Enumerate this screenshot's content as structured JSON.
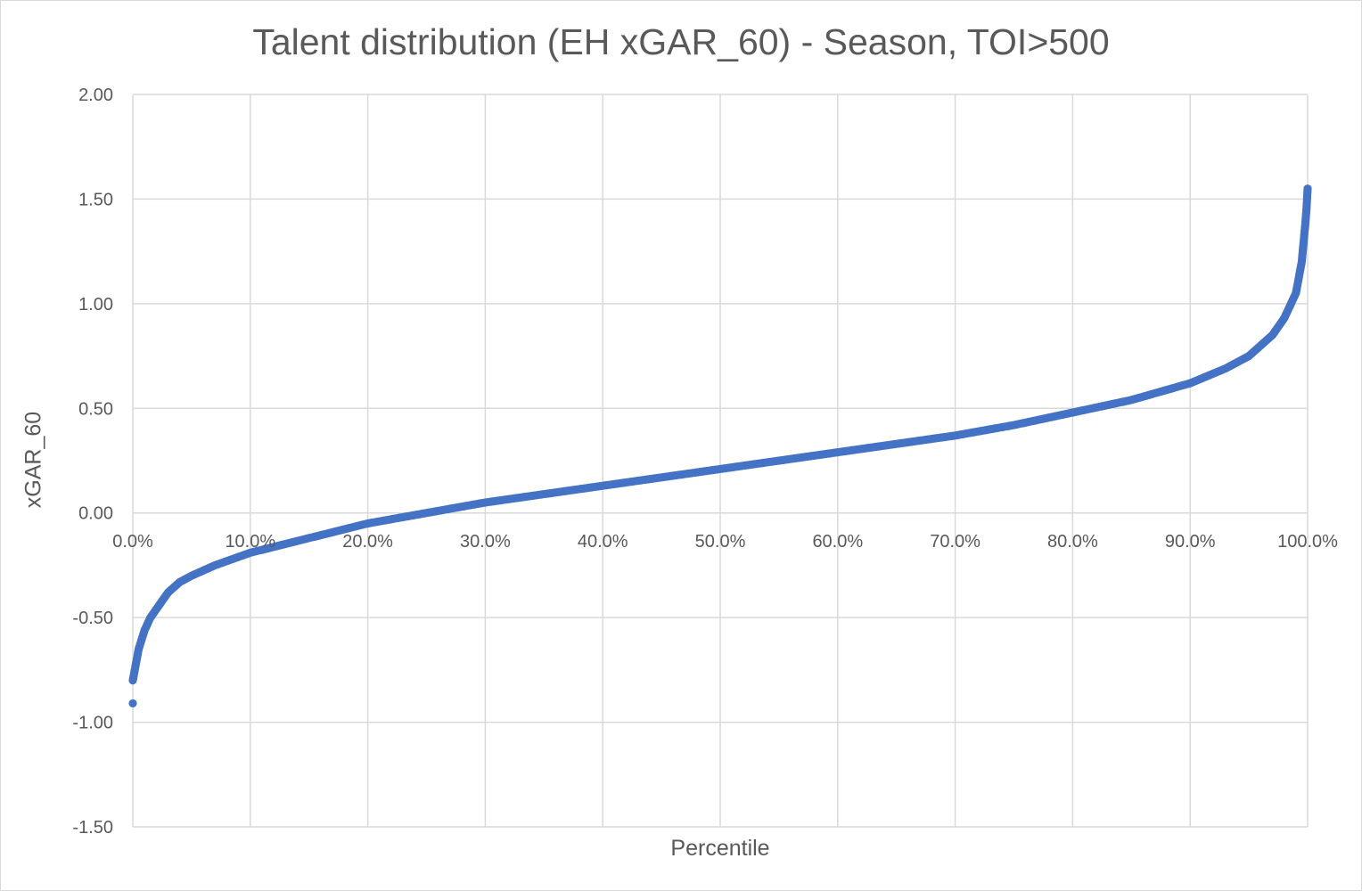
{
  "chart_data": {
    "type": "scatter",
    "title": "Talent distribution (EH xGAR_60) - Season, TOI>500",
    "xlabel": "Percentile",
    "ylabel": "xGAR_60",
    "xlim": [
      0,
      1
    ],
    "ylim": [
      -1.5,
      2.0
    ],
    "grid": true,
    "legend": "none",
    "series_color": "#4472C4",
    "x_ticks": [
      0,
      0.1,
      0.2,
      0.3,
      0.4,
      0.5,
      0.6,
      0.7,
      0.8,
      0.9,
      1.0
    ],
    "x_tick_labels": [
      "0.0%",
      "10.0%",
      "20.0%",
      "30.0%",
      "40.0%",
      "50.0%",
      "60.0%",
      "70.0%",
      "80.0%",
      "90.0%",
      "100.0%"
    ],
    "y_ticks": [
      2,
      1.5,
      1,
      0.5,
      0,
      -0.5,
      -1,
      -1.5
    ],
    "y_tick_labels": [
      "2.00",
      "1.50",
      "1.00",
      "0.50",
      "0.00",
      "-0.50",
      "-1.00",
      "-1.50"
    ],
    "outliers": [
      {
        "x": 0.0,
        "y": -0.91
      }
    ],
    "points": [
      {
        "x": 0.0,
        "y": -0.8
      },
      {
        "x": 0.002,
        "y": -0.74
      },
      {
        "x": 0.005,
        "y": -0.65
      },
      {
        "x": 0.01,
        "y": -0.56
      },
      {
        "x": 0.015,
        "y": -0.5
      },
      {
        "x": 0.02,
        "y": -0.46
      },
      {
        "x": 0.03,
        "y": -0.38
      },
      {
        "x": 0.04,
        "y": -0.33
      },
      {
        "x": 0.05,
        "y": -0.3
      },
      {
        "x": 0.07,
        "y": -0.25
      },
      {
        "x": 0.1,
        "y": -0.19
      },
      {
        "x": 0.15,
        "y": -0.12
      },
      {
        "x": 0.2,
        "y": -0.05
      },
      {
        "x": 0.25,
        "y": 0.0
      },
      {
        "x": 0.3,
        "y": 0.05
      },
      {
        "x": 0.35,
        "y": 0.09
      },
      {
        "x": 0.4,
        "y": 0.13
      },
      {
        "x": 0.45,
        "y": 0.17
      },
      {
        "x": 0.5,
        "y": 0.21
      },
      {
        "x": 0.55,
        "y": 0.25
      },
      {
        "x": 0.6,
        "y": 0.29
      },
      {
        "x": 0.65,
        "y": 0.33
      },
      {
        "x": 0.7,
        "y": 0.37
      },
      {
        "x": 0.75,
        "y": 0.42
      },
      {
        "x": 0.8,
        "y": 0.48
      },
      {
        "x": 0.85,
        "y": 0.54
      },
      {
        "x": 0.9,
        "y": 0.62
      },
      {
        "x": 0.93,
        "y": 0.69
      },
      {
        "x": 0.95,
        "y": 0.75
      },
      {
        "x": 0.97,
        "y": 0.85
      },
      {
        "x": 0.98,
        "y": 0.93
      },
      {
        "x": 0.99,
        "y": 1.05
      },
      {
        "x": 0.995,
        "y": 1.2
      },
      {
        "x": 0.998,
        "y": 1.38
      },
      {
        "x": 0.999,
        "y": 1.45
      },
      {
        "x": 1.0,
        "y": 1.55
      }
    ]
  }
}
